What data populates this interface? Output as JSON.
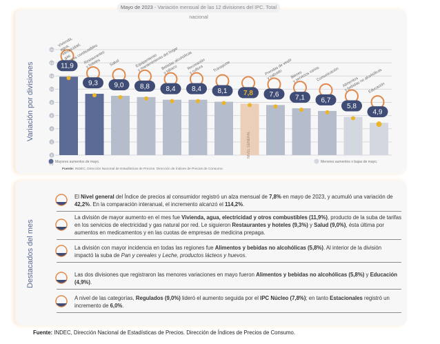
{
  "title": {
    "prefix": "Mayo de 2023",
    "rest": " - Variación mensual de las 12 divisiones del IPC. Total nacional"
  },
  "chart_data": {
    "type": "bar",
    "ylabel": "Variación por divisiones",
    "unit": "%",
    "ylim": [
      0,
      16
    ],
    "yticks": [
      0,
      2,
      4,
      6,
      8,
      10,
      12,
      14,
      16
    ],
    "grid": true,
    "categories": [
      "Vivienda, agua, electricidad, gas y otros combustibles",
      "Restaurantes y hoteles",
      "Salud",
      "Equipamiento y mantenimiento del hogar",
      "Bebidas alcohólicas y tabaco",
      "Recreación y cultura",
      "Transporte",
      "NIVEL GENERAL",
      "Prendas de vestir y calzado",
      "Bienes y servicios varios",
      "Comunicación",
      "Alimentos y bebidas no alcohólicas",
      "Educación"
    ],
    "values": [
      11.9,
      9.3,
      9.0,
      8.8,
      8.4,
      8.4,
      8.1,
      7.8,
      7.6,
      7.1,
      6.7,
      5.8,
      4.9
    ],
    "value_labels": [
      "11,9",
      "9,3",
      "9,0",
      "8,8",
      "8,4",
      "8,4",
      "8,1",
      "7,8",
      "7,6",
      "7,1",
      "6,7",
      "5,8",
      "4,9"
    ],
    "groups": [
      "high",
      "high",
      "mid",
      "mid",
      "mid",
      "mid",
      "mid",
      "general",
      "mid",
      "mid",
      "mid",
      "low",
      "low"
    ],
    "legend": {
      "high": "Mayores aumentos de mayo.",
      "low": "Menores aumentos o bajas de mayo."
    },
    "colors": {
      "high": "#5b6b95",
      "mid": "#b5bdcc",
      "general": "#eccfb8",
      "low": "#d3d7df",
      "bubble": "#3f4c75",
      "dot": "#eab52a",
      "icon": "#e0894a"
    }
  },
  "source": {
    "label": "Fuente:",
    "text": " INDEC, Dirección Nacional de Estadísticas de Precios. Dirección de Índices de Precios de Consumo."
  },
  "highlights": {
    "title": "Destacados del mes",
    "items": [
      [
        {
          "t": "El "
        },
        {
          "t": "Nivel general",
          "b": 1
        },
        {
          "t": " del Índice de precios al consumidor registró un alza mensual de "
        },
        {
          "t": "7,8%",
          "b": 1
        },
        {
          "t": " en mayo de 2023, y acumuló una variación de "
        },
        {
          "t": "42,2%",
          "b": 1
        },
        {
          "t": ". En la comparación interanual, el incremento alcanzó el "
        },
        {
          "t": "114,2%",
          "b": 1
        },
        {
          "t": "."
        }
      ],
      [
        {
          "t": "La división de mayor aumento en el mes fue "
        },
        {
          "t": "Vivienda, agua, electricidad y otros combustibles (11,9%)",
          "b": 1
        },
        {
          "t": ", producto de la suba de tarifas en los servicios de electricidad y gas natural por red. Le siguieron "
        },
        {
          "t": "Restaurantes y hoteles (9,3%)",
          "b": 1
        },
        {
          "t": " y "
        },
        {
          "t": "Salud (9,0%)",
          "b": 1
        },
        {
          "t": ", ésta última por aumentos en medicamentos y en las cuotas de empresas de medicina prepaga."
        }
      ],
      [
        {
          "t": "La división con mayor incidencia en todas las regiones fue "
        },
        {
          "t": "Alimentos y bebidas no alcohólicas (5,8%)",
          "b": 1
        },
        {
          "t": ". Al interior de la división impactó la suba de "
        },
        {
          "t": "Pan y cereales",
          "i": 1
        },
        {
          "t": " y "
        },
        {
          "t": "Leche, productos lácteos y huevos",
          "i": 1
        },
        {
          "t": "."
        }
      ],
      [
        {
          "t": "Las dos divisiones que registraron las menores variaciones en mayo fueron "
        },
        {
          "t": "Alimentos y bebidas no alcohólicas (5,8%)",
          "b": 1
        },
        {
          "t": " y "
        },
        {
          "t": "Educación (4,9%)",
          "b": 1
        },
        {
          "t": "."
        }
      ],
      [
        {
          "t": "A nivel de las categorías, "
        },
        {
          "t": "Regulados (9,0%)",
          "b": 1
        },
        {
          "t": " lideró el aumento seguida por el "
        },
        {
          "t": "IPC Núcleo (7,8%)",
          "b": 1
        },
        {
          "t": "; en tanto "
        },
        {
          "t": "Estacionales",
          "b": 1
        },
        {
          "t": " registró un incremento de "
        },
        {
          "t": "6,0%",
          "b": 1
        },
        {
          "t": "."
        }
      ]
    ]
  }
}
